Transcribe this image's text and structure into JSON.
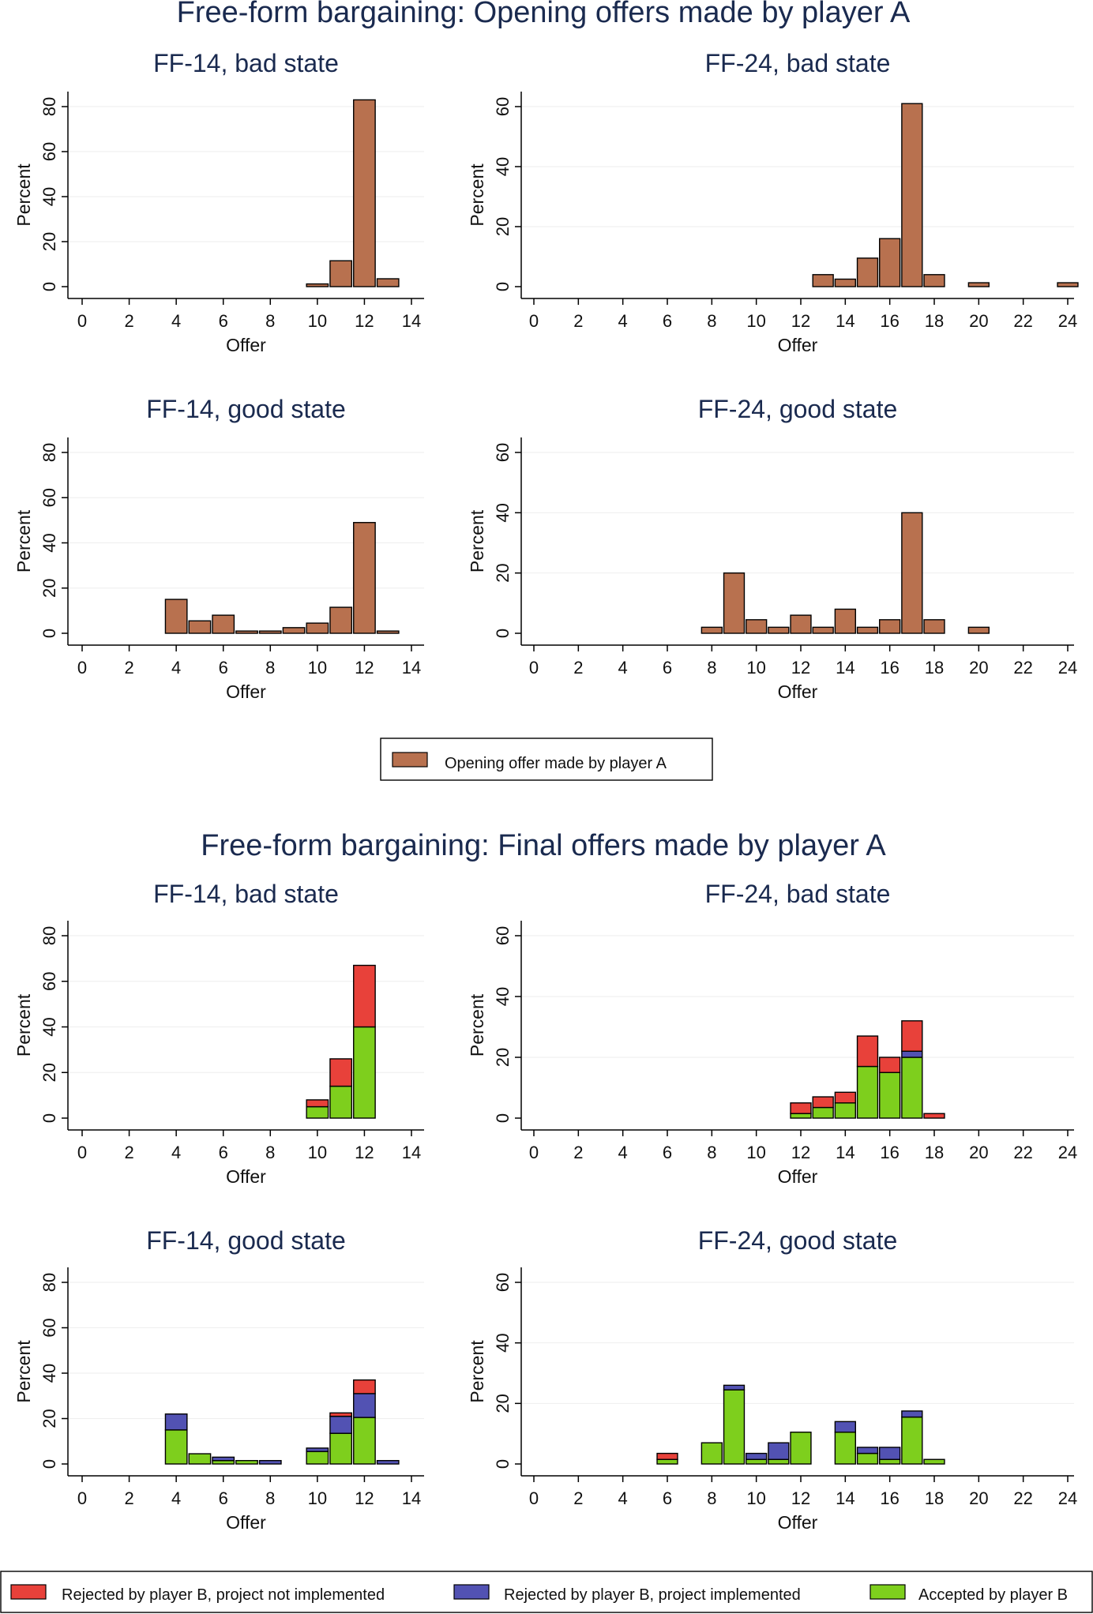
{
  "colors": {
    "opening": "#b8714f",
    "not_implemented": "#e8413a",
    "implemented": "#5252b3",
    "accepted": "#7ecf1d",
    "title": "#1a2a4f"
  },
  "sections": [
    {
      "title": "Free-form bargaining: Opening offers made by player A"
    },
    {
      "title": "Free-form bargaining: Final offers made by player A"
    }
  ],
  "legend_opening": {
    "items": [
      {
        "label": "Opening offer made by player A",
        "color": "#b8714f"
      }
    ]
  },
  "legend_final": {
    "items": [
      {
        "label": "Rejected by player B, project not implemented",
        "color": "#e8413a"
      },
      {
        "label": "Rejected by player B, project implemented",
        "color": "#5252b3"
      },
      {
        "label": "Accepted by player B",
        "color": "#7ecf1d"
      }
    ]
  },
  "chart_data": [
    {
      "type": "bar",
      "title": "FF-14, bad state",
      "xlabel": "Offer",
      "ylabel": "Percent",
      "xlim": [
        0,
        14
      ],
      "xticks": [
        0,
        2,
        4,
        6,
        8,
        10,
        12,
        14
      ],
      "ylim": [
        0,
        80
      ],
      "yticks": [
        0,
        20,
        40,
        60,
        80
      ],
      "series": [
        {
          "name": "Opening offer made by player A",
          "color": "#b8714f",
          "x": [
            10,
            11,
            12,
            13
          ],
          "values": [
            1.2,
            11.5,
            83,
            3.5
          ]
        }
      ]
    },
    {
      "type": "bar",
      "title": "FF-24, bad state",
      "xlabel": "Offer",
      "ylabel": "Percent",
      "xlim": [
        0,
        24
      ],
      "xticks": [
        0,
        2,
        4,
        6,
        8,
        10,
        12,
        14,
        16,
        18,
        20,
        22,
        24
      ],
      "ylim": [
        0,
        60
      ],
      "yticks": [
        0,
        20,
        40,
        60
      ],
      "series": [
        {
          "name": "Opening offer made by player A",
          "color": "#b8714f",
          "x": [
            13,
            14,
            15,
            16,
            17,
            18,
            20,
            24
          ],
          "values": [
            4,
            2.5,
            9.5,
            16,
            61,
            4,
            1.3,
            1.3
          ]
        }
      ]
    },
    {
      "type": "bar",
      "title": "FF-14, good state",
      "xlabel": "Offer",
      "ylabel": "Percent",
      "xlim": [
        0,
        14
      ],
      "xticks": [
        0,
        2,
        4,
        6,
        8,
        10,
        12,
        14
      ],
      "ylim": [
        0,
        80
      ],
      "yticks": [
        0,
        20,
        40,
        60,
        80
      ],
      "series": [
        {
          "name": "Opening offer made by player A",
          "color": "#b8714f",
          "x": [
            4,
            5,
            6,
            7,
            8,
            9,
            10,
            11,
            12,
            13
          ],
          "values": [
            15,
            5.5,
            8,
            1,
            1,
            2.5,
            4.5,
            11.5,
            49,
            1
          ]
        }
      ]
    },
    {
      "type": "bar",
      "title": "FF-24, good state",
      "xlabel": "Offer",
      "ylabel": "Percent",
      "xlim": [
        0,
        24
      ],
      "xticks": [
        0,
        2,
        4,
        6,
        8,
        10,
        12,
        14,
        16,
        18,
        20,
        22,
        24
      ],
      "ylim": [
        0,
        60
      ],
      "yticks": [
        0,
        20,
        40,
        60
      ],
      "series": [
        {
          "name": "Opening offer made by player A",
          "color": "#b8714f",
          "x": [
            8,
            9,
            10,
            11,
            12,
            13,
            14,
            15,
            16,
            17,
            18,
            20
          ],
          "values": [
            2,
            20,
            4.5,
            2,
            6,
            2,
            8,
            2,
            4.5,
            40,
            4.5,
            2
          ]
        }
      ]
    },
    {
      "type": "bar",
      "stacked": true,
      "title": "FF-14, bad state",
      "xlabel": "Offer",
      "ylabel": "Percent",
      "xlim": [
        0,
        14
      ],
      "xticks": [
        0,
        2,
        4,
        6,
        8,
        10,
        12,
        14
      ],
      "ylim": [
        0,
        80
      ],
      "yticks": [
        0,
        20,
        40,
        60,
        80
      ],
      "x": [
        10,
        11,
        12
      ],
      "series": [
        {
          "name": "Accepted by player B",
          "color": "#7ecf1d",
          "values": [
            5,
            14,
            40
          ]
        },
        {
          "name": "Rejected by player B, project implemented",
          "color": "#5252b3",
          "values": [
            0,
            0,
            0
          ]
        },
        {
          "name": "Rejected by player B, project not implemented",
          "color": "#e8413a",
          "values": [
            3,
            12,
            27
          ]
        }
      ]
    },
    {
      "type": "bar",
      "stacked": true,
      "title": "FF-24, bad state",
      "xlabel": "Offer",
      "ylabel": "Percent",
      "xlim": [
        0,
        24
      ],
      "xticks": [
        0,
        2,
        4,
        6,
        8,
        10,
        12,
        14,
        16,
        18,
        20,
        22,
        24
      ],
      "ylim": [
        0,
        60
      ],
      "yticks": [
        0,
        20,
        40,
        60
      ],
      "x": [
        12,
        13,
        14,
        15,
        16,
        17,
        18
      ],
      "series": [
        {
          "name": "Accepted by player B",
          "color": "#7ecf1d",
          "values": [
            1.5,
            3.5,
            5,
            17,
            15,
            20,
            0
          ]
        },
        {
          "name": "Rejected by player B, project implemented",
          "color": "#5252b3",
          "values": [
            0,
            0,
            0,
            0,
            0,
            2,
            0
          ]
        },
        {
          "name": "Rejected by player B, project not implemented",
          "color": "#e8413a",
          "values": [
            3.5,
            3.5,
            3.5,
            10,
            5,
            10,
            1.5
          ]
        }
      ]
    },
    {
      "type": "bar",
      "stacked": true,
      "title": "FF-14, good state",
      "xlabel": "Offer",
      "ylabel": "Percent",
      "xlim": [
        0,
        14
      ],
      "xticks": [
        0,
        2,
        4,
        6,
        8,
        10,
        12,
        14
      ],
      "ylim": [
        0,
        80
      ],
      "yticks": [
        0,
        20,
        40,
        60,
        80
      ],
      "x": [
        4,
        5,
        6,
        7,
        8,
        10,
        11,
        12,
        13
      ],
      "series": [
        {
          "name": "Accepted by player B",
          "color": "#7ecf1d",
          "values": [
            15,
            4.5,
            1.5,
            1.5,
            0,
            5.5,
            13.5,
            20.5,
            0
          ]
        },
        {
          "name": "Rejected by player B, project implemented",
          "color": "#5252b3",
          "values": [
            7,
            0,
            1.5,
            0,
            1.5,
            1.5,
            7.5,
            10.5,
            1.5
          ]
        },
        {
          "name": "Rejected by player B, project not implemented",
          "color": "#e8413a",
          "values": [
            0,
            0,
            0,
            0,
            0,
            0,
            1.5,
            6,
            0
          ]
        }
      ]
    },
    {
      "type": "bar",
      "stacked": true,
      "title": "FF-24, good state",
      "xlabel": "Offer",
      "ylabel": "Percent",
      "xlim": [
        0,
        24
      ],
      "xticks": [
        0,
        2,
        4,
        6,
        8,
        10,
        12,
        14,
        16,
        18,
        20,
        22,
        24
      ],
      "ylim": [
        0,
        60
      ],
      "yticks": [
        0,
        20,
        40,
        60
      ],
      "x": [
        6,
        8,
        9,
        10,
        11,
        12,
        14,
        15,
        16,
        17,
        18
      ],
      "series": [
        {
          "name": "Accepted by player B",
          "color": "#7ecf1d",
          "values": [
            1.5,
            7,
            24.5,
            1.5,
            1.5,
            10.5,
            10.5,
            3.5,
            1.5,
            15.5,
            1.5
          ]
        },
        {
          "name": "Rejected by player B, project implemented",
          "color": "#5252b3",
          "values": [
            0,
            0,
            1.5,
            2,
            5.5,
            0,
            3.5,
            2,
            4,
            2,
            0
          ]
        },
        {
          "name": "Rejected by player B, project not implemented",
          "color": "#e8413a",
          "values": [
            2,
            0,
            0,
            0,
            0,
            0,
            0,
            0,
            0,
            0,
            0
          ]
        }
      ]
    }
  ]
}
